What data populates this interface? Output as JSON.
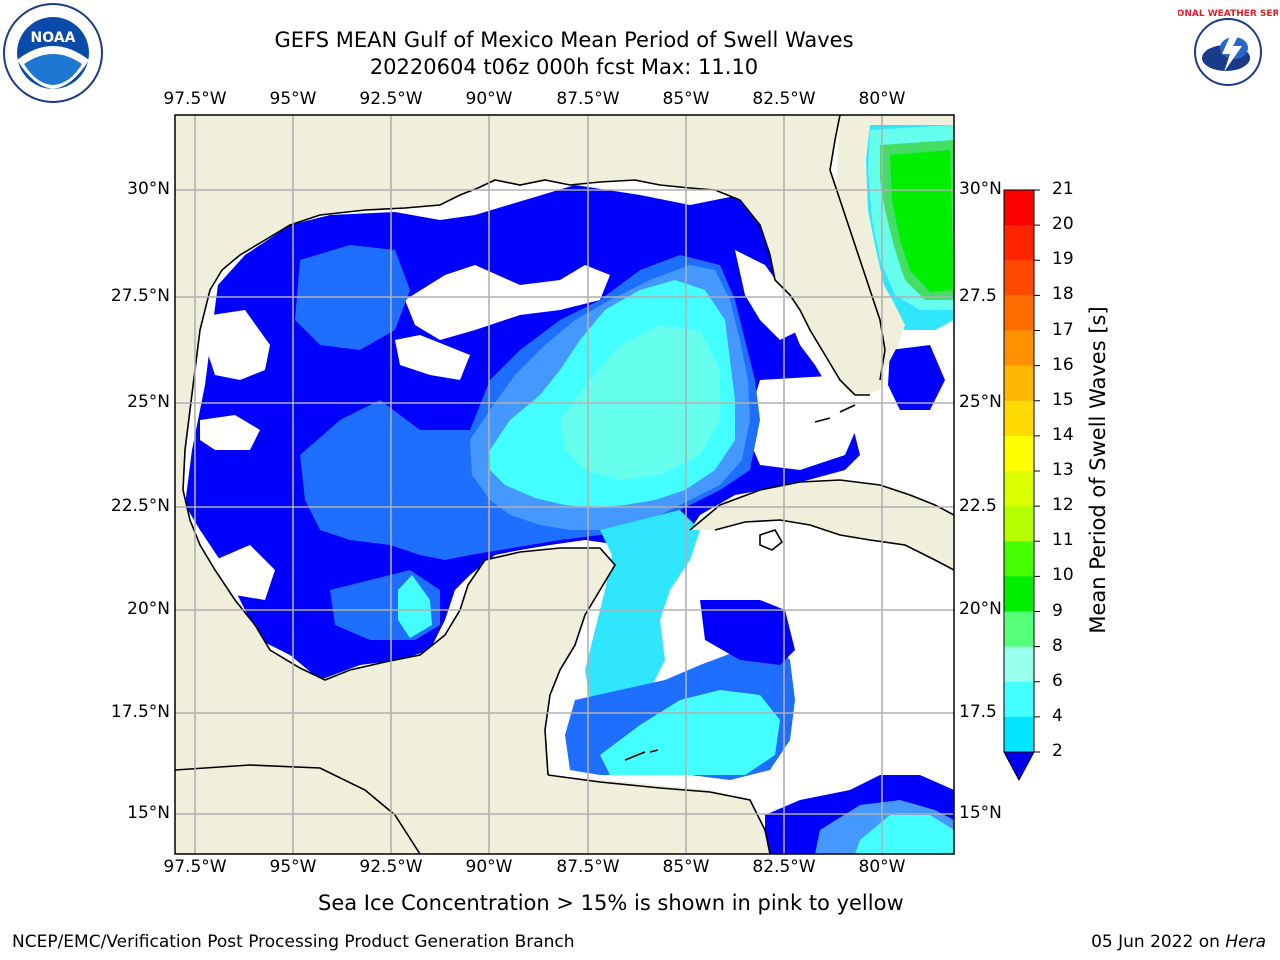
{
  "title_line1": "GEFS MEAN Gulf of Mexico Mean Period of Swell Waves",
  "title_line2": "20220604 t06z 000h fcst   Max: 11.10",
  "lon_ticks": [
    "97.5°W",
    "95°W",
    "92.5°W",
    "90°W",
    "87.5°W",
    "85°W",
    "82.5°W",
    "80°W"
  ],
  "lat_ticks_left": [
    "30°N",
    "27.5°N",
    "25°N",
    "22.5°N",
    "20°N",
    "17.5°N",
    "15°N"
  ],
  "lat_ticks_right": [
    "30°N",
    "27.5",
    "25°N",
    "22.5",
    "20°N",
    "17.5",
    "15°N"
  ],
  "colorbar": {
    "label": "Mean Period of Swell Waves [s]",
    "ticks": [
      "21",
      "20",
      "19",
      "18",
      "17",
      "16",
      "15",
      "14",
      "13",
      "12",
      "11",
      "10",
      "9",
      "8",
      "6",
      "4",
      "2"
    ],
    "colors": [
      "#ff0000",
      "#ff2400",
      "#ff4800",
      "#ff6d00",
      "#ff9100",
      "#ffb600",
      "#ffda00",
      "#ffff00",
      "#dbff00",
      "#b6ff00",
      "#48ff00",
      "#00ee00",
      "#55ff77",
      "#99ffee",
      "#44ffff",
      "#00e5ff",
      "#0080ff"
    ],
    "extend_color": "#0000ee"
  },
  "map_colors": {
    "land": "#efefdc",
    "ocean_white": "#ffffff",
    "p2": "#0000ff",
    "p3": "#1e6eff",
    "p4": "#4498ff",
    "p5": "#30e6ff",
    "p6": "#44ffff",
    "p7": "#66ffee",
    "p9": "#44dd66",
    "p10": "#00ee00",
    "grid": "#b0b0b0"
  },
  "note": "Sea Ice Concentration > 15% is shown in pink to yellow",
  "footer_left": "NCEP/EMC/Verification Post Processing Product Generation Branch",
  "footer_right_date": "05 Jun 2022 on ",
  "footer_right_host": "Hera",
  "logo_left_text": "NOAA",
  "logo_right_text": "NATIONAL WEATHER SERVICE"
}
